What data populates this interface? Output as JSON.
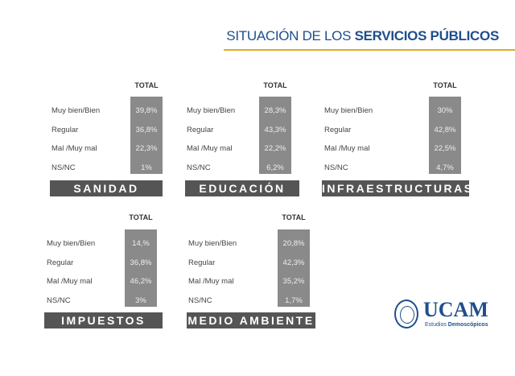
{
  "header": {
    "title_regular": "SITUACIÓN DE LOS ",
    "title_bold": "SERVICIOS PÚBLICOS",
    "accent_color": "#e2a92b",
    "title_color": "#1f4e8c"
  },
  "column_header": "TOTAL",
  "row_labels": [
    "Muy bien/Bien",
    "Regular",
    "Mal /Muy mal",
    "NS/NC"
  ],
  "panels": [
    {
      "name": "SANIDAD",
      "values": [
        "39,8%",
        "36,8%",
        "22,3%",
        "1%"
      ]
    },
    {
      "name": "EDUCACIÓN",
      "values": [
        "28,3%",
        "43,3%",
        "22,2%",
        "6,2%"
      ]
    },
    {
      "name": "INFRAESTRUCTURAS",
      "values": [
        "30%",
        "42,8%",
        "22,5%",
        "4,7%"
      ]
    },
    {
      "name": "IMPUESTOS",
      "values": [
        "14,%",
        "36,8%",
        "46,2%",
        "3%"
      ]
    },
    {
      "name": "MEDIO AMBIENTE",
      "values": [
        "20,8%",
        "42,3%",
        "35,2%",
        "1,7%"
      ]
    }
  ],
  "logo": {
    "name": "UCAM",
    "sub_regular": "Estudios ",
    "sub_bold": "Demoscópicos"
  }
}
